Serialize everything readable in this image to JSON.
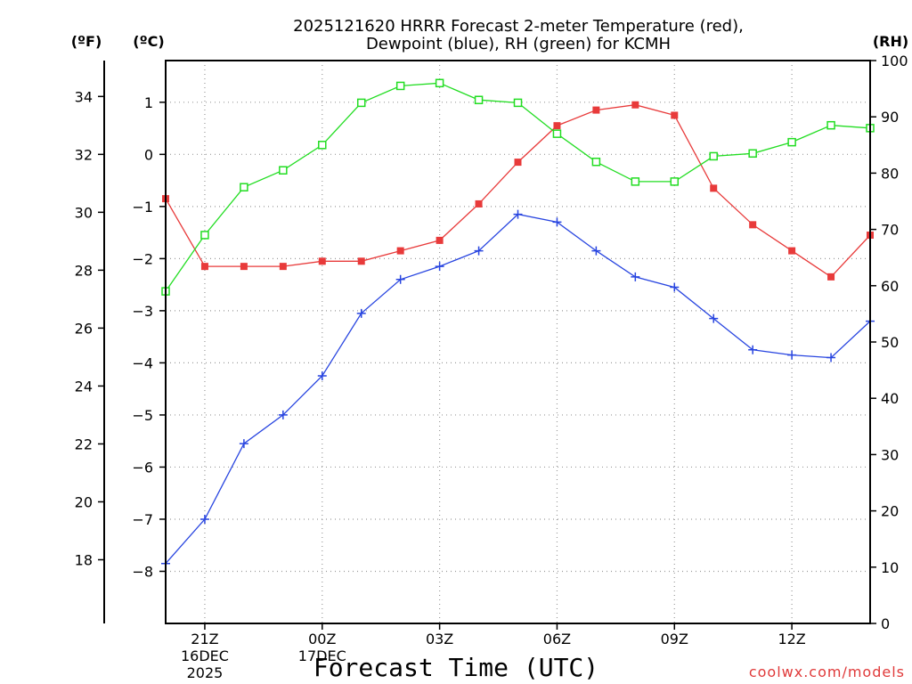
{
  "chart_data": {
    "type": "line",
    "title_lines": [
      "2025121620 HRRR Forecast 2-meter Temperature (red),",
      "Dewpoint (blue), RH (green) for KCMH"
    ],
    "units": {
      "fahrenheit": "(ºF)",
      "celsius": "(ºC)",
      "rh": "(RH)"
    },
    "xlabel": "Forecast Time (UTC)",
    "credit": "coolwx.com/models",
    "x_hours": [
      0,
      1,
      2,
      3,
      4,
      5,
      6,
      7,
      8,
      9,
      10,
      11,
      12,
      13,
      14,
      15,
      16,
      17,
      18
    ],
    "x_ticks": [
      {
        "hour": 1,
        "label": "21Z",
        "sub": [
          "16DEC",
          "2025"
        ]
      },
      {
        "hour": 4,
        "label": "00Z",
        "sub": [
          "17DEC"
        ]
      },
      {
        "hour": 7,
        "label": "03Z",
        "sub": []
      },
      {
        "hour": 10,
        "label": "06Z",
        "sub": []
      },
      {
        "hour": 13,
        "label": "09Z",
        "sub": []
      },
      {
        "hour": 16,
        "label": "12Z",
        "sub": []
      }
    ],
    "celsius_axis": {
      "min": -9,
      "max": 1.8,
      "ticks": [
        1,
        0,
        -1,
        -2,
        -3,
        -4,
        -5,
        -6,
        -7,
        -8
      ]
    },
    "fahrenheit_axis": {
      "ticks": [
        34,
        32,
        30,
        28,
        26,
        24,
        22,
        20,
        18
      ]
    },
    "rh_axis": {
      "min": 0,
      "max": 100,
      "ticks": [
        100,
        90,
        80,
        70,
        60,
        50,
        40,
        30,
        20,
        10,
        0
      ]
    },
    "series": [
      {
        "name": "Temperature",
        "color": "#e83a3a",
        "marker": "filled-square",
        "axis": "celsius",
        "values": [
          -0.85,
          -2.15,
          -2.15,
          -2.15,
          -2.05,
          -2.05,
          -1.85,
          -1.65,
          -0.95,
          -0.15,
          0.55,
          0.85,
          0.95,
          0.75,
          -0.65,
          -1.35,
          -1.85,
          -2.35,
          -1.55
        ]
      },
      {
        "name": "Dewpoint",
        "color": "#2845e0",
        "marker": "plus",
        "axis": "celsius",
        "values": [
          -7.85,
          -7.0,
          -5.55,
          -5.0,
          -4.25,
          -3.05,
          -2.4,
          -2.15,
          -1.85,
          -1.15,
          -1.3,
          -1.85,
          -2.35,
          -2.55,
          -3.15,
          -3.75,
          -3.85,
          -3.9,
          -3.2
        ]
      },
      {
        "name": "RH",
        "color": "#22dd22",
        "marker": "open-square",
        "axis": "rh",
        "values": [
          59,
          69,
          77.5,
          80.5,
          85,
          92.5,
          95.5,
          96,
          93,
          92.5,
          87,
          82,
          78.5,
          78.5,
          83,
          83.5,
          85.5,
          88.5,
          88
        ]
      }
    ]
  }
}
